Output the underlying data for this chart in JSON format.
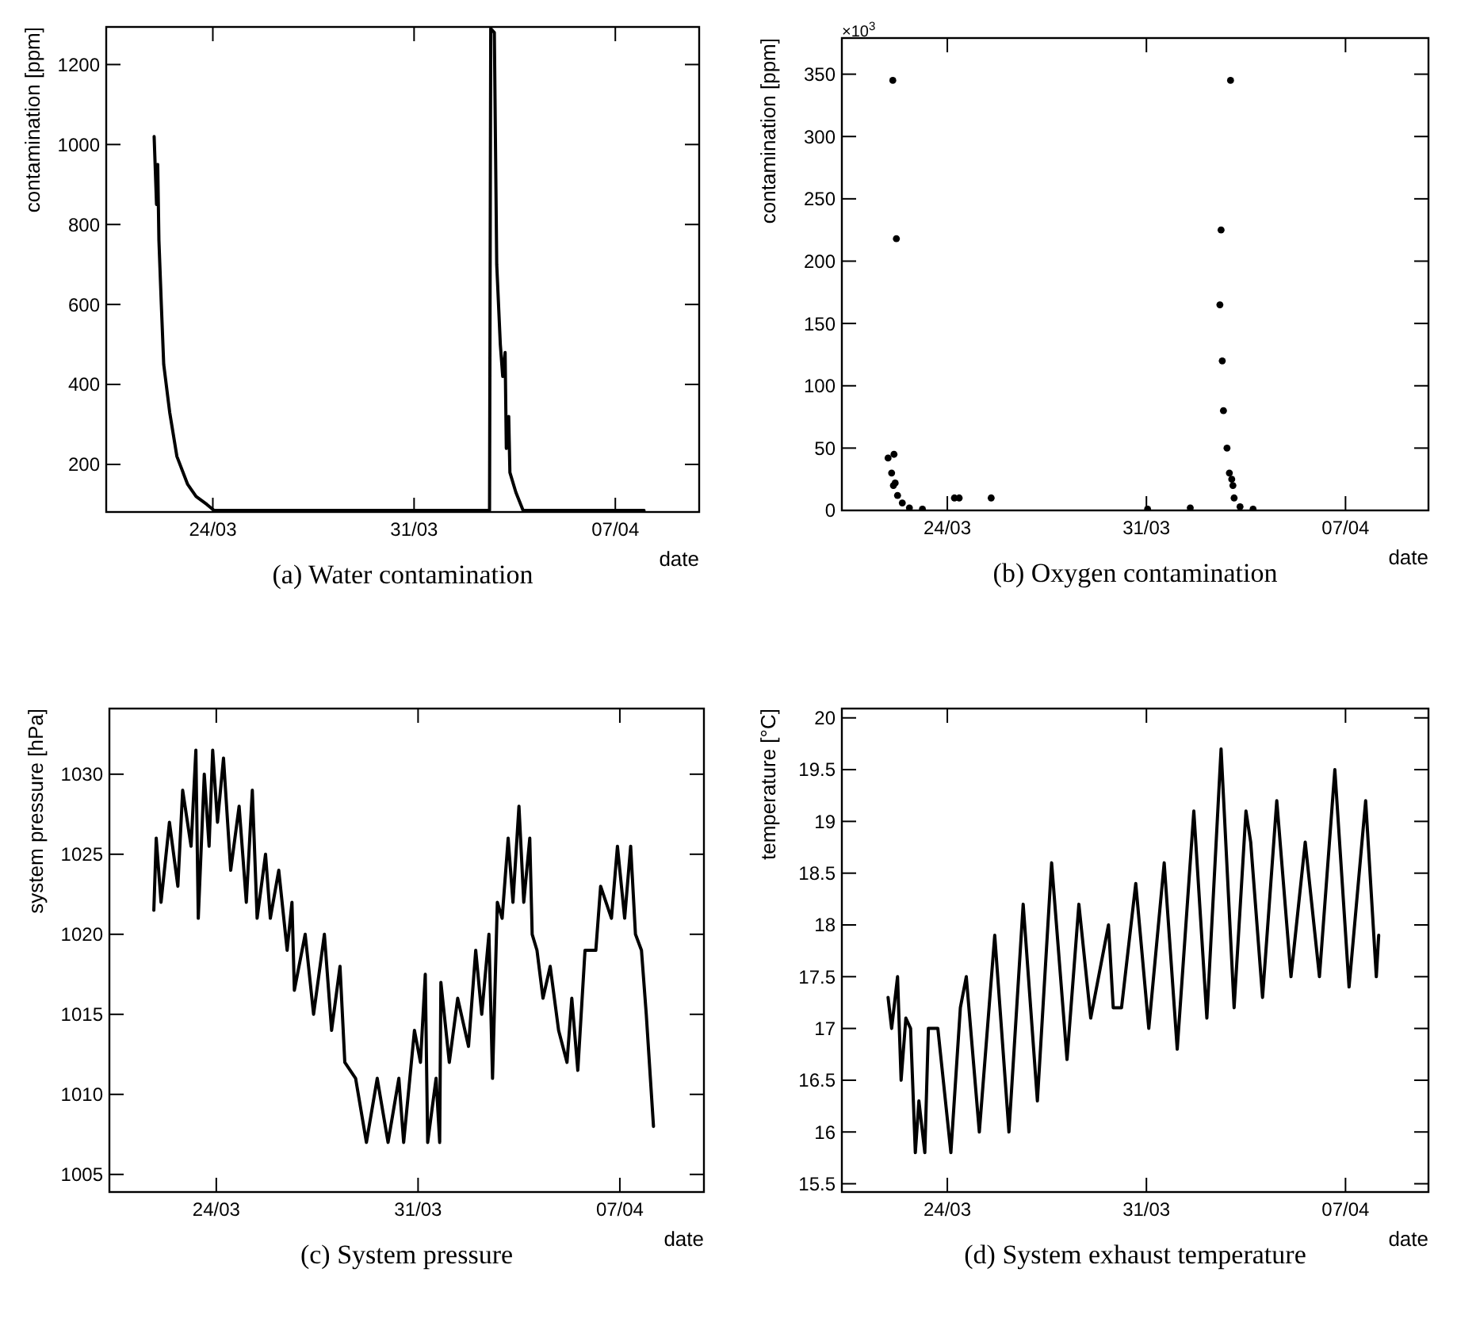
{
  "chart_data": [
    {
      "type": "line",
      "title": "(a) Water contamination",
      "xlabel": "date",
      "ylabel": "contamination [ppm]",
      "xlim": [
        "--03-20T07:00",
        "--04-09T22:00"
      ],
      "xticks": [
        {
          "value": "--03-24",
          "label": "24/03"
        },
        {
          "value": "--03-31",
          "label": "31/03"
        },
        {
          "value": "--04-07",
          "label": "07/04"
        }
      ],
      "ylim": [
        81,
        1294
      ],
      "yticks": [
        200,
        400,
        600,
        800,
        1000,
        1200
      ],
      "series": [
        {
          "color": "#000000",
          "x": [
            "--03-21T23:00",
            "--03-22T01:00",
            "--03-22T02:00",
            "--03-22T03:00",
            "--03-22T05:00",
            "--03-22T07:00",
            "--03-22T12:00",
            "--03-22T18:00",
            "--03-23T03:00",
            "--03-23T10:00",
            "--03-23T19:00",
            "--03-24T01:00",
            "--04-02T15:00",
            "--04-02T16:00",
            "--04-02T19:00",
            "--04-02T21:00",
            "--04-03T00:00",
            "--04-03T02:00",
            "--04-03T04:00",
            "--04-03T05:00",
            "--04-03T07:00",
            "--04-03T08:00",
            "--04-03T13:00",
            "--04-03T19:00",
            "--04-08T00:00"
          ],
          "values": [
            1020,
            850,
            950,
            760,
            600,
            450,
            330,
            220,
            150,
            120,
            100,
            85,
            85,
            1290,
            1280,
            700,
            500,
            420,
            480,
            240,
            320,
            180,
            130,
            85,
            85
          ]
        }
      ]
    },
    {
      "type": "scatter",
      "title": "(b) Oxygen contamination",
      "xlabel": "date",
      "ylabel": "contamination [ppm]",
      "annotations": [
        "×10$^{3}$"
      ],
      "xlim": [
        "--03-20T07:00",
        "--04-09T22:00"
      ],
      "xticks": [
        {
          "value": "--03-24",
          "label": "24/03"
        },
        {
          "value": "--03-31",
          "label": "31/03"
        },
        {
          "value": "--04-07",
          "label": "07/04"
        }
      ],
      "ylim": [
        0,
        379
      ],
      "yticks": [
        0,
        50,
        100,
        150,
        200,
        250,
        300,
        350
      ],
      "series": [
        {
          "color": "#000000",
          "x": [
            "--03-21T22:00",
            "--03-22T01:00",
            "--03-22T02:00",
            "--03-22T02:30",
            "--03-22T03:00",
            "--03-22T04:00",
            "--03-22T05:00",
            "--03-22T06:00",
            "--03-22T10:00",
            "--03-22T16:00",
            "--03-23T03:00",
            "--03-24T06:00",
            "--03-24T10:00",
            "--03-25T13:00",
            "--03-31T01:00",
            "--04-01T13:00",
            "--04-02T14:00",
            "--04-02T15:00",
            "--04-02T16:00",
            "--04-02T17:00",
            "--04-02T20:00",
            "--04-02T22:00",
            "--04-02T23:00",
            "--04-03T00:00",
            "--04-03T01:00",
            "--04-03T02:00",
            "--04-03T07:00",
            "--04-03T18:00"
          ],
          "values": [
            42,
            30,
            345,
            20,
            45,
            22,
            218,
            12,
            6,
            2,
            1,
            10,
            10,
            10,
            1,
            2,
            165,
            225,
            120,
            80,
            50,
            30,
            345,
            25,
            20,
            10,
            3,
            1
          ]
        }
      ]
    },
    {
      "type": "line",
      "title": "(c) System pressure",
      "xlabel": "date",
      "ylabel": "system pressure [hPa]",
      "xlim": [
        "--03-20T07:00",
        "--04-09T22:00"
      ],
      "xticks": [
        {
          "value": "--03-24",
          "label": "24/03"
        },
        {
          "value": "--03-31",
          "label": "31/03"
        },
        {
          "value": "--04-07",
          "label": "07/04"
        }
      ],
      "ylim": [
        1003.9,
        1034.1
      ],
      "yticks": [
        1005,
        1010,
        1015,
        1020,
        1025,
        1030
      ],
      "series": [
        {
          "color": "#000000",
          "x": [
            "--03-21T20:00",
            "--03-21T22:00",
            "--03-22T02:00",
            "--03-22T09:00",
            "--03-22T16:00",
            "--03-22T20:00",
            "--03-23T03:00",
            "--03-23T07:00",
            "--03-23T09:00",
            "--03-23T14:00",
            "--03-23T18:00",
            "--03-23T21:00",
            "--03-24T01:00",
            "--03-24T06:00",
            "--03-24T12:00",
            "--03-24T19:00",
            "--03-25T01:00",
            "--03-25T06:00",
            "--03-25T10:00",
            "--03-25T17:00",
            "--03-25T21:00",
            "--03-26T04:00",
            "--03-26T11:00",
            "--03-26T15:00",
            "--03-26T17:00",
            "--03-27T02:00",
            "--03-27T09:00",
            "--03-27T18:00",
            "--03-28T00:00",
            "--03-28T07:00",
            "--03-28T11:00",
            "--03-28T20:00",
            "--03-29T05:00",
            "--03-29T14:00",
            "--03-29T23:00",
            "--03-30T08:00",
            "--03-30T12:00",
            "--03-30T21:00",
            "--03-31T02:00",
            "--03-31T06:00",
            "--03-31T08:00",
            "--03-31T15:00",
            "--03-31T18:00",
            "--03-31T19:00",
            "--04-01T02:00",
            "--04-01T09:00",
            "--04-01T18:00",
            "--04-02T00:00",
            "--04-02T05:00",
            "--04-02T11:00",
            "--04-02T14:00",
            "--04-02T18:00",
            "--04-02T22:00",
            "--04-03T03:00",
            "--04-03T07:00",
            "--04-03T12:00",
            "--04-03T16:00",
            "--04-03T21:00",
            "--04-03T23:00",
            "--04-04T03:00",
            "--04-04T08:00",
            "--04-04T14:00",
            "--04-04T21:00",
            "--04-05T04:00",
            "--04-05T08:00",
            "--04-05T13:00",
            "--04-05T19:00",
            "--04-06T04:00",
            "--04-06T08:00",
            "--04-06T17:00",
            "--04-06T22:00",
            "--04-07T04:00",
            "--04-07T09:00",
            "--04-07T13:00",
            "--04-07T18:00",
            "--04-07T22:00",
            "--04-08T04:00"
          ],
          "values": [
            1021.5,
            1026,
            1022,
            1027,
            1023,
            1029,
            1025.5,
            1031.5,
            1021,
            1030,
            1025.5,
            1031.5,
            1027,
            1031,
            1024,
            1028,
            1022,
            1029,
            1021,
            1025,
            1021,
            1024,
            1019,
            1022,
            1016.5,
            1020,
            1015,
            1020,
            1014,
            1018,
            1012,
            1011,
            1007,
            1011,
            1007,
            1011,
            1007,
            1014,
            1012,
            1017.5,
            1007,
            1011,
            1007,
            1017,
            1012,
            1016,
            1013,
            1019,
            1015,
            1020,
            1011,
            1022,
            1021,
            1026,
            1022,
            1028,
            1022,
            1026,
            1020,
            1019,
            1016,
            1018,
            1014,
            1012,
            1016,
            1011.5,
            1019,
            1019,
            1023,
            1021,
            1025.5,
            1021,
            1025.5,
            1020,
            1019,
            1015,
            1008
          ]
        }
      ]
    },
    {
      "type": "line",
      "title": "(d) System exhaust temperature",
      "xlabel": "date",
      "ylabel": "temperature [°C]",
      "xlim": [
        "--03-20T07:00",
        "--04-09T22:00"
      ],
      "xticks": [
        {
          "value": "--03-24",
          "label": "24/03"
        },
        {
          "value": "--03-31",
          "label": "31/03"
        },
        {
          "value": "--04-07",
          "label": "07/04"
        }
      ],
      "ylim": [
        15.42,
        20.09
      ],
      "yticks": [
        15.5,
        16,
        16.5,
        17,
        17.5,
        18,
        18.5,
        19,
        19.5,
        20
      ],
      "series": [
        {
          "color": "#000000",
          "x": [
            "--03-21T22:00",
            "--03-22T01:00",
            "--03-22T06:00",
            "--03-22T09:00",
            "--03-22T13:00",
            "--03-22T17:00",
            "--03-22T21:00",
            "--03-23T00:00",
            "--03-23T05:00",
            "--03-23T08:00",
            "--03-23T16:00",
            "--03-24T03:00",
            "--03-24T11:00",
            "--03-24T16:00",
            "--03-25T03:00",
            "--03-25T16:00",
            "--03-26T04:00",
            "--03-26T16:00",
            "--03-27T04:00",
            "--03-27T16:00",
            "--03-28T05:00",
            "--03-28T15:00",
            "--03-29T01:00",
            "--03-29T16:00",
            "--03-29T20:00",
            "--03-30T03:00",
            "--03-30T15:00",
            "--03-31T02:00",
            "--03-31T15:00",
            "--04-01T02:00",
            "--04-01T16:00",
            "--04-02T03:00",
            "--04-02T15:00",
            "--04-03T02:00",
            "--04-03T12:00",
            "--04-03T16:00",
            "--04-04T02:00",
            "--04-04T14:00",
            "--04-05T02:00",
            "--04-05T14:00",
            "--04-06T02:00",
            "--04-06T15:00",
            "--04-07T03:00",
            "--04-07T17:00",
            "--04-08T02:00",
            "--04-08T04:00"
          ],
          "values": [
            17.3,
            17.0,
            17.5,
            16.5,
            17.1,
            17.0,
            15.8,
            16.3,
            15.8,
            17.0,
            17.0,
            15.8,
            17.2,
            17.5,
            16.0,
            17.9,
            16.0,
            18.2,
            16.3,
            18.6,
            16.7,
            18.2,
            17.1,
            18.0,
            17.2,
            17.2,
            18.4,
            17.0,
            18.6,
            16.8,
            19.1,
            17.1,
            19.7,
            17.2,
            19.1,
            18.8,
            17.3,
            19.2,
            17.5,
            18.8,
            17.5,
            19.5,
            17.4,
            19.2,
            17.5,
            17.9
          ]
        }
      ]
    }
  ]
}
